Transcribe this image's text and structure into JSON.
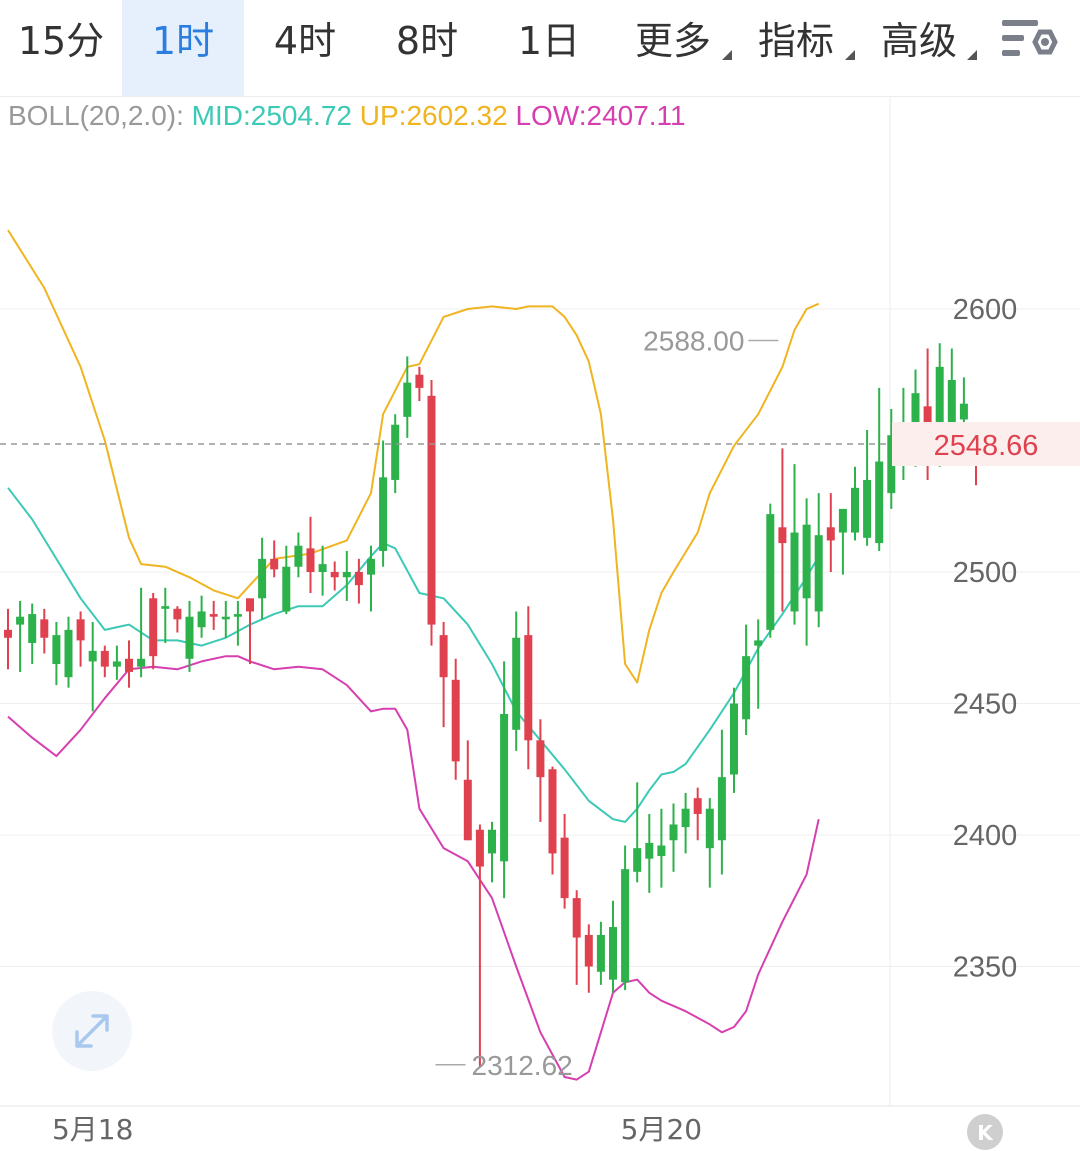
{
  "tabs": [
    {
      "label": "15分",
      "active": false
    },
    {
      "label": "1时",
      "active": true
    },
    {
      "label": "4时",
      "active": false
    },
    {
      "label": "8时",
      "active": false
    },
    {
      "label": "1日",
      "active": false
    },
    {
      "label": "更多",
      "dropdown": true
    },
    {
      "label": "指标",
      "dropdown": true
    },
    {
      "label": "高级",
      "dropdown": true
    }
  ],
  "settings_icon": "chart-settings-icon",
  "indicator": {
    "name": "BOLL(20,2.0):",
    "mid_label": "MID:2504.72",
    "up_label": "UP:2602.32",
    "low_label": "LOW:2407.11"
  },
  "colors": {
    "up_candle": "#e0414e",
    "down_candle": "#2db14b",
    "mid": "#3cc9b5",
    "upper": "#f0b420",
    "lower": "#d63fb0",
    "accent": "#2a7de1",
    "price_line": "#999999"
  },
  "chart_data": {
    "type": "candlestick",
    "y_axis": {
      "ticks": [
        2600,
        2500,
        2450,
        2400,
        2350
      ],
      "range": [
        2305,
        2630
      ]
    },
    "x_labels": [
      {
        "label": "5月18",
        "index": 7
      },
      {
        "label": "5月20",
        "index": 54
      }
    ],
    "current_price": "2548.66",
    "high_marker": {
      "label": "2588.00",
      "index": 64,
      "value": 2588.0
    },
    "low_marker": {
      "label": "2312.62",
      "index": 35,
      "value": 2312.62
    },
    "candles": [
      [
        2478,
        2475,
        2486,
        2463
      ],
      [
        2480,
        2483,
        2489,
        2462
      ],
      [
        2473,
        2484,
        2488,
        2465
      ],
      [
        2482,
        2475,
        2486,
        2469
      ],
      [
        2465,
        2476,
        2481,
        2457
      ],
      [
        2460,
        2478,
        2483,
        2456
      ],
      [
        2482,
        2474,
        2485,
        2464
      ],
      [
        2466,
        2470,
        2481,
        2447
      ],
      [
        2470,
        2464,
        2472,
        2460
      ],
      [
        2464,
        2466,
        2472,
        2459
      ],
      [
        2467,
        2462,
        2474,
        2456
      ],
      [
        2464,
        2467,
        2494,
        2460
      ],
      [
        2490,
        2468,
        2492,
        2463
      ],
      [
        2486,
        2487,
        2494,
        2473
      ],
      [
        2486,
        2482,
        2487,
        2477
      ],
      [
        2467,
        2483,
        2489,
        2462
      ],
      [
        2479,
        2485,
        2491,
        2475
      ],
      [
        2484,
        2483,
        2489,
        2478
      ],
      [
        2482,
        2483,
        2489,
        2475
      ],
      [
        2483,
        2484,
        2489,
        2472
      ],
      [
        2490,
        2485,
        2488,
        2465
      ],
      [
        2490,
        2505,
        2513,
        2482
      ],
      [
        2505,
        2501,
        2512,
        2498
      ],
      [
        2485,
        2502,
        2510,
        2484
      ],
      [
        2502,
        2510,
        2515,
        2498
      ],
      [
        2509,
        2500,
        2521,
        2492
      ],
      [
        2500,
        2503,
        2510,
        2491
      ],
      [
        2500,
        2498,
        2504,
        2493
      ],
      [
        2498,
        2500,
        2508,
        2489
      ],
      [
        2500,
        2495,
        2505,
        2488
      ],
      [
        2499,
        2505,
        2510,
        2485
      ],
      [
        2508,
        2536,
        2550,
        2502
      ],
      [
        2535,
        2556,
        2560,
        2530
      ],
      [
        2559,
        2572,
        2582,
        2551
      ],
      [
        2575,
        2570,
        2578,
        2565
      ],
      [
        2567,
        2480,
        2573,
        2472
      ],
      [
        2476,
        2460,
        2481,
        2441
      ],
      [
        2459,
        2428,
        2467,
        2421
      ],
      [
        2421,
        2398,
        2436,
        2398
      ],
      [
        2402,
        2388,
        2404,
        2312
      ],
      [
        2393,
        2402,
        2405,
        2382
      ],
      [
        2390,
        2446,
        2466,
        2376
      ],
      [
        2440,
        2475,
        2485,
        2432
      ],
      [
        2476,
        2436,
        2487,
        2425
      ],
      [
        2436,
        2422,
        2444,
        2405
      ],
      [
        2425,
        2393,
        2426,
        2385
      ],
      [
        2399,
        2376,
        2408,
        2372
      ],
      [
        2376,
        2361,
        2379,
        2343
      ],
      [
        2362,
        2350,
        2366,
        2340
      ],
      [
        2348,
        2362,
        2367,
        2343
      ],
      [
        2345,
        2365,
        2375,
        2340
      ],
      [
        2344,
        2387,
        2396,
        2341
      ],
      [
        2386,
        2395,
        2420,
        2382
      ],
      [
        2391,
        2397,
        2408,
        2378
      ],
      [
        2392,
        2396,
        2410,
        2380
      ],
      [
        2398,
        2404,
        2412,
        2386
      ],
      [
        2403,
        2410,
        2416,
        2393
      ],
      [
        2414,
        2408,
        2418,
        2398
      ],
      [
        2395,
        2410,
        2414,
        2380
      ],
      [
        2398,
        2422,
        2440,
        2385
      ],
      [
        2423,
        2450,
        2456,
        2416
      ],
      [
        2444,
        2468,
        2480,
        2438
      ],
      [
        2472,
        2474,
        2482,
        2448
      ],
      [
        2478,
        2522,
        2526,
        2475
      ],
      [
        2517,
        2511,
        2547,
        2485
      ],
      [
        2485,
        2515,
        2541,
        2480
      ],
      [
        2490,
        2518,
        2528,
        2472
      ],
      [
        2485,
        2514,
        2530,
        2479
      ],
      [
        2517,
        2512,
        2530,
        2500
      ],
      [
        2515,
        2524,
        2521,
        2499
      ],
      [
        2515,
        2532,
        2540,
        2512
      ],
      [
        2513,
        2535,
        2554,
        2510
      ],
      [
        2511,
        2542,
        2570,
        2508
      ],
      [
        2530,
        2552,
        2562,
        2524
      ],
      [
        2542,
        2555,
        2570,
        2535
      ],
      [
        2542,
        2568,
        2577,
        2540
      ],
      [
        2563,
        2548,
        2585,
        2535
      ],
      [
        2556,
        2578,
        2587,
        2540
      ],
      [
        2548,
        2573,
        2585,
        2543
      ],
      [
        2558,
        2564,
        2574,
        2550
      ],
      [
        2548,
        2548,
        2552,
        2533
      ]
    ],
    "boll_upper_anchors": [
      [
        0,
        2630
      ],
      [
        3,
        2608
      ],
      [
        6,
        2578
      ],
      [
        8,
        2550
      ],
      [
        10,
        2513
      ],
      [
        11,
        2503
      ],
      [
        13,
        2502
      ],
      [
        15,
        2498
      ],
      [
        17,
        2493
      ],
      [
        19,
        2490
      ],
      [
        20,
        2495
      ],
      [
        22,
        2505
      ],
      [
        25,
        2507
      ],
      [
        28,
        2512
      ],
      [
        30,
        2530
      ],
      [
        31,
        2560
      ],
      [
        33,
        2578
      ],
      [
        34,
        2579
      ],
      [
        36,
        2597
      ],
      [
        38,
        2600
      ],
      [
        40,
        2601
      ],
      [
        42,
        2600
      ],
      [
        43,
        2601
      ],
      [
        45,
        2601
      ],
      [
        46,
        2597
      ],
      [
        47,
        2590
      ],
      [
        48,
        2580
      ],
      [
        49,
        2560
      ],
      [
        50,
        2520
      ],
      [
        51,
        2465
      ],
      [
        52,
        2458
      ],
      [
        53,
        2478
      ],
      [
        54,
        2492
      ],
      [
        55,
        2500
      ],
      [
        57,
        2515
      ],
      [
        58,
        2530
      ],
      [
        60,
        2548
      ],
      [
        62,
        2560
      ],
      [
        64,
        2578
      ],
      [
        65,
        2592
      ],
      [
        66,
        2600
      ],
      [
        67,
        2602
      ]
    ],
    "boll_mid_anchors": [
      [
        0,
        2532
      ],
      [
        2,
        2520
      ],
      [
        4,
        2505
      ],
      [
        6,
        2490
      ],
      [
        8,
        2478
      ],
      [
        10,
        2480
      ],
      [
        12,
        2474
      ],
      [
        14,
        2474
      ],
      [
        16,
        2472
      ],
      [
        18,
        2475
      ],
      [
        20,
        2480
      ],
      [
        22,
        2484
      ],
      [
        24,
        2487
      ],
      [
        26,
        2487
      ],
      [
        28,
        2495
      ],
      [
        30,
        2506
      ],
      [
        31,
        2511
      ],
      [
        32,
        2509
      ],
      [
        34,
        2492
      ],
      [
        36,
        2490
      ],
      [
        38,
        2480
      ],
      [
        40,
        2465
      ],
      [
        42,
        2447
      ],
      [
        44,
        2436
      ],
      [
        46,
        2425
      ],
      [
        48,
        2413
      ],
      [
        50,
        2406
      ],
      [
        51,
        2405
      ],
      [
        52,
        2410
      ],
      [
        53,
        2417
      ],
      [
        54,
        2423
      ],
      [
        55,
        2424
      ],
      [
        56,
        2427
      ],
      [
        58,
        2440
      ],
      [
        60,
        2454
      ],
      [
        62,
        2471
      ],
      [
        64,
        2484
      ],
      [
        66,
        2498
      ],
      [
        67,
        2506
      ]
    ],
    "boll_lower_anchors": [
      [
        0,
        2445
      ],
      [
        2,
        2437
      ],
      [
        4,
        2430
      ],
      [
        6,
        2440
      ],
      [
        8,
        2452
      ],
      [
        10,
        2463
      ],
      [
        12,
        2464
      ],
      [
        14,
        2463
      ],
      [
        16,
        2466
      ],
      [
        18,
        2468
      ],
      [
        19,
        2468
      ],
      [
        20,
        2466
      ],
      [
        22,
        2463
      ],
      [
        24,
        2464
      ],
      [
        26,
        2463
      ],
      [
        28,
        2457
      ],
      [
        30,
        2447
      ],
      [
        31,
        2448
      ],
      [
        32,
        2448
      ],
      [
        33,
        2440
      ],
      [
        34,
        2410
      ],
      [
        36,
        2395
      ],
      [
        38,
        2390
      ],
      [
        40,
        2376
      ],
      [
        42,
        2350
      ],
      [
        44,
        2325
      ],
      [
        46,
        2308
      ],
      [
        47,
        2307
      ],
      [
        48,
        2310
      ],
      [
        49,
        2325
      ],
      [
        50,
        2340
      ],
      [
        51,
        2344
      ],
      [
        52,
        2345
      ],
      [
        53,
        2340
      ],
      [
        54,
        2337
      ],
      [
        56,
        2333
      ],
      [
        58,
        2328
      ],
      [
        59,
        2325
      ],
      [
        60,
        2327
      ],
      [
        61,
        2333
      ],
      [
        62,
        2347
      ],
      [
        64,
        2367
      ],
      [
        66,
        2385
      ],
      [
        67,
        2406
      ]
    ]
  }
}
